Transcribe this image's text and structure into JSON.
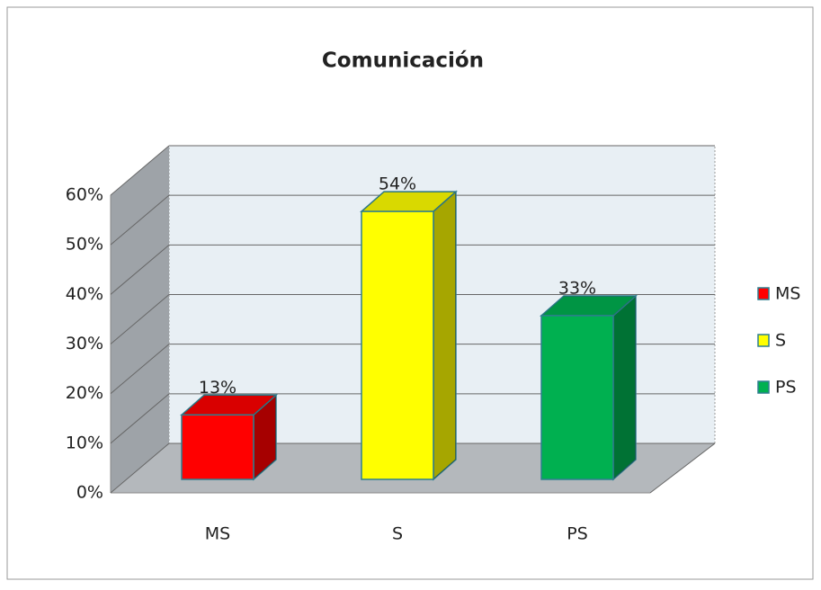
{
  "chart_data": {
    "type": "bar3d",
    "title": "Comunicación",
    "categories": [
      "MS",
      "S",
      "PS"
    ],
    "values": [
      13,
      54,
      33
    ],
    "value_labels": [
      "13%",
      "54%",
      "33%"
    ],
    "colors": [
      "#ff0000",
      "#ffff00",
      "#00b050"
    ],
    "ylim": [
      0,
      60
    ],
    "yticks": [
      {
        "value": 0,
        "label": "0%"
      },
      {
        "value": 10,
        "label": "10%"
      },
      {
        "value": 20,
        "label": "20%"
      },
      {
        "value": 30,
        "label": "30%"
      },
      {
        "value": 40,
        "label": "40%"
      },
      {
        "value": 50,
        "label": "50%"
      },
      {
        "value": 60,
        "label": "60%"
      }
    ],
    "grid": true,
    "legend": "right"
  }
}
